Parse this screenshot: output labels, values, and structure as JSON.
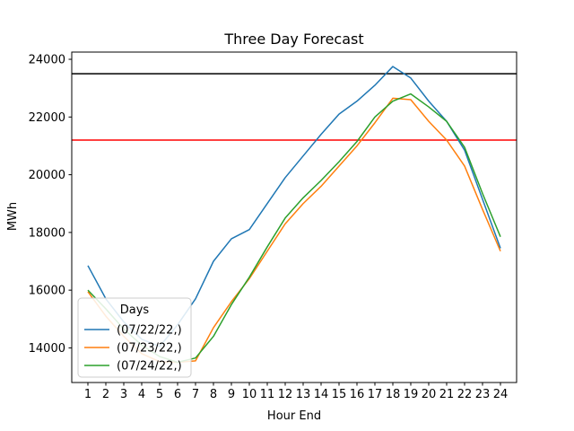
{
  "chart_data": {
    "type": "line",
    "title": "Three Day Forecast",
    "xlabel": "Hour End",
    "ylabel": "MWh",
    "x": [
      1,
      2,
      3,
      4,
      5,
      6,
      7,
      8,
      9,
      10,
      11,
      12,
      13,
      14,
      15,
      16,
      17,
      18,
      19,
      20,
      21,
      22,
      23,
      24
    ],
    "x_ticks": [
      "1",
      "2",
      "3",
      "4",
      "5",
      "6",
      "7",
      "8",
      "9",
      "10",
      "11",
      "12",
      "13",
      "14",
      "15",
      "16",
      "17",
      "18",
      "19",
      "20",
      "21",
      "22",
      "23",
      "24"
    ],
    "xlim": [
      0.1,
      24.9
    ],
    "ylim": [
      12800,
      24250
    ],
    "y_ticks": [
      14000,
      16000,
      18000,
      20000,
      22000,
      24000
    ],
    "y_tick_labels": [
      "14000",
      "16000",
      "18000",
      "20000",
      "22000",
      "24000"
    ],
    "grid": false,
    "legend": {
      "title": "Days",
      "placement": "lower-left"
    },
    "series": [
      {
        "name": "(07/22/22,)",
        "color": "#1f77b4",
        "values": [
          16850,
          15700,
          14900,
          14300,
          14050,
          14800,
          15700,
          17000,
          17780,
          18100,
          19000,
          19900,
          20650,
          21400,
          22100,
          22550,
          23100,
          23750,
          23350,
          22550,
          21850,
          20850,
          19150,
          17450
        ]
      },
      {
        "name": "(07/23/22,)",
        "color": "#ff7f0e",
        "values": [
          15950,
          15100,
          14400,
          13800,
          13520,
          13500,
          13550,
          14700,
          15600,
          16400,
          17350,
          18300,
          19000,
          19600,
          20300,
          21000,
          21800,
          22650,
          22600,
          21850,
          21200,
          20300,
          18800,
          17350
        ]
      },
      {
        "name": "(07/24/22,)",
        "color": "#2ca02c",
        "values": [
          16000,
          15350,
          14650,
          14100,
          13700,
          13500,
          13650,
          14400,
          15500,
          16450,
          17500,
          18500,
          19200,
          19800,
          20450,
          21150,
          22000,
          22550,
          22800,
          22350,
          21850,
          20950,
          19350,
          17850
        ]
      }
    ],
    "reference_lines": [
      {
        "y": 23500,
        "color": "#000000"
      },
      {
        "y": 21200,
        "color": "#ff0000"
      }
    ]
  }
}
